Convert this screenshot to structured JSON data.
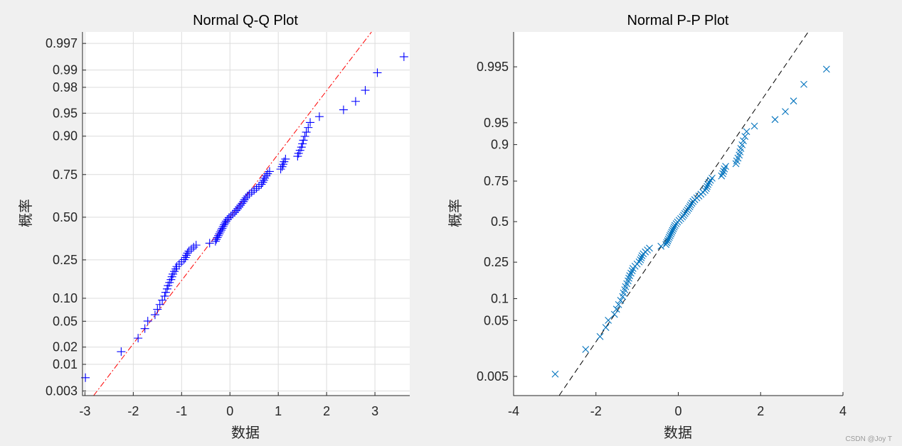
{
  "figure": {
    "background": "#f0f0f0",
    "axes_background": "#ffffff"
  },
  "watermark": "CSDN @Joy T",
  "chart_data": [
    {
      "id": "qq",
      "type": "scatter",
      "title": "Normal Q-Q Plot",
      "xlabel": "数据",
      "ylabel": "概率",
      "xlim": [
        -3.05,
        3.72
      ],
      "xticks": [
        -3,
        -2,
        -1,
        0,
        1,
        2,
        3
      ],
      "y_scale": "normal-probability",
      "ylim_prob": [
        0.0024,
        0.9983
      ],
      "yticks": [
        0.003,
        0.01,
        0.02,
        0.05,
        0.1,
        0.25,
        0.5,
        0.75,
        0.9,
        0.95,
        0.98,
        0.99,
        0.997
      ],
      "yticklabels": [
        "0.003",
        "0.01",
        "0.02",
        "0.05",
        "0.10",
        "0.25",
        "0.50",
        "0.75",
        "0.90",
        "0.95",
        "0.98",
        "0.99",
        "0.997"
      ],
      "grid": true,
      "marker": "+",
      "marker_color": "#0000ff",
      "reference_line": {
        "style": "dashdot",
        "color": "#ff0000",
        "slope": 1.0,
        "intercept": 0.0,
        "x_range": [
          -3.0,
          3.2
        ]
      },
      "x": [
        -2.99,
        -2.25,
        -1.9,
        -1.76,
        -1.7,
        -1.55,
        -1.5,
        -1.45,
        -1.4,
        -1.35,
        -1.33,
        -1.3,
        -1.28,
        -1.25,
        -1.22,
        -1.2,
        -1.18,
        -1.15,
        -1.12,
        -1.1,
        -1.05,
        -1.0,
        -0.95,
        -0.92,
        -0.9,
        -0.88,
        -0.85,
        -0.8,
        -0.75,
        -0.7,
        -0.42,
        -0.3,
        -0.28,
        -0.26,
        -0.24,
        -0.22,
        -0.2,
        -0.18,
        -0.16,
        -0.14,
        -0.12,
        -0.1,
        -0.08,
        -0.05,
        -0.02,
        0.02,
        0.06,
        0.1,
        0.13,
        0.16,
        0.19,
        0.22,
        0.25,
        0.28,
        0.3,
        0.33,
        0.36,
        0.4,
        0.45,
        0.5,
        0.55,
        0.6,
        0.65,
        0.68,
        0.7,
        0.72,
        0.75,
        0.78,
        0.82,
        1.05,
        1.08,
        1.1,
        1.12,
        1.15,
        1.4,
        1.42,
        1.45,
        1.48,
        1.5,
        1.52,
        1.55,
        1.58,
        1.62,
        1.66,
        1.85,
        2.35,
        2.6,
        2.8,
        3.05,
        3.6
      ],
      "p": [
        0.00559,
        0.01676,
        0.02793,
        0.03911,
        0.05028,
        0.06145,
        0.07263,
        0.0838,
        0.09497,
        0.10615,
        0.11732,
        0.12849,
        0.13966,
        0.15084,
        0.16201,
        0.17318,
        0.18436,
        0.19553,
        0.2067,
        0.21788,
        0.22905,
        0.24022,
        0.2514,
        0.26257,
        0.27374,
        0.28492,
        0.29609,
        0.30726,
        0.31844,
        0.32961,
        0.34078,
        0.35196,
        0.36313,
        0.3743,
        0.38547,
        0.39665,
        0.40782,
        0.41899,
        0.43017,
        0.44134,
        0.45251,
        0.46369,
        0.47486,
        0.48603,
        0.49721,
        0.50838,
        0.51955,
        0.53073,
        0.5419,
        0.55307,
        0.56425,
        0.57542,
        0.58659,
        0.59777,
        0.60894,
        0.62011,
        0.63128,
        0.64246,
        0.65363,
        0.6648,
        0.67598,
        0.68715,
        0.69832,
        0.7095,
        0.72067,
        0.73184,
        0.74302,
        0.75419,
        0.76536,
        0.77654,
        0.78771,
        0.79888,
        0.81006,
        0.82123,
        0.8324,
        0.84358,
        0.85475,
        0.86592,
        0.87709,
        0.88827,
        0.89944,
        0.91061,
        0.92179,
        0.93296,
        0.94413,
        0.95531,
        0.96648,
        0.97765,
        0.98883,
        0.99441
      ]
    },
    {
      "id": "pp",
      "type": "scatter",
      "title": "Normal P-P Plot",
      "xlabel": "数据",
      "ylabel": "概率",
      "xlim": [
        -4,
        4
      ],
      "xticks": [
        -4,
        -2,
        0,
        2,
        4
      ],
      "y_scale": "normal-probability",
      "ylim_prob": [
        0.0019,
        0.9992
      ],
      "yticks": [
        0.005,
        0.05,
        0.1,
        0.25,
        0.5,
        0.75,
        0.9,
        0.95,
        0.995
      ],
      "yticklabels": [
        "0.005",
        "0.05",
        "0.1",
        "0.25",
        "0.5",
        "0.75",
        "0.9",
        "0.95",
        "0.995"
      ],
      "grid": false,
      "marker": "x",
      "marker_color": "#0072bd",
      "reference_line": {
        "style": "dashed",
        "color": "#000000",
        "slope": 1.0,
        "intercept": 0.0,
        "x_range": [
          -3.6,
          3.4
        ]
      }
    }
  ]
}
